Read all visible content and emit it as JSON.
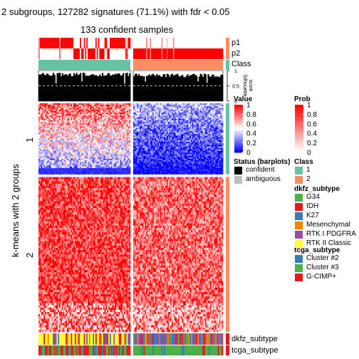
{
  "title": "2 subgroups, 127282 signatures (71.1%) with fdr < 0.05",
  "subtitle": "133 confident samples",
  "y_axis_label": "k-means with 2 groups",
  "row_groups": [
    "1",
    "2"
  ],
  "tracks": {
    "p1": "p1",
    "p2": "p2",
    "class": "Class",
    "silhouette": "Silhouette\nscore",
    "dkfz": "dkfz_subtype",
    "tcga": "tcga_subtype"
  },
  "silhouette_ticks": [
    "0",
    "0.5",
    "1"
  ],
  "legends": {
    "value": {
      "title": "Value",
      "ticks": [
        "1",
        "0.8",
        "0.6",
        "0.4",
        "0.2",
        "0"
      ],
      "colors": [
        "#ff0000",
        "#ffffff",
        "#0000ff"
      ]
    },
    "prob": {
      "title": "Prob",
      "ticks": [
        "1",
        "0.8",
        "0.6",
        "0.4",
        "0.2",
        "0"
      ],
      "colors": [
        "#ff0000",
        "#ffffff"
      ]
    },
    "status": {
      "title": "Status (barplots)",
      "items": [
        {
          "label": "confident",
          "color": "#000000"
        },
        {
          "label": "ambiguous",
          "color": "#bebebe"
        }
      ]
    },
    "class": {
      "title": "Class",
      "items": [
        {
          "label": "1",
          "color": "#66c2a5"
        },
        {
          "label": "2",
          "color": "#fc8d62"
        }
      ]
    },
    "dkfz": {
      "title": "dkfz_subtype",
      "items": [
        {
          "label": "G34",
          "color": "#4daf4a"
        },
        {
          "label": "IDH",
          "color": "#e41a1c"
        },
        {
          "label": "K27",
          "color": "#377eb8"
        },
        {
          "label": "Mesenchymal",
          "color": "#ff7f00"
        },
        {
          "label": "RTK I PDGFRA",
          "color": "#984ea3"
        },
        {
          "label": "RTK II Classic",
          "color": "#ffff33"
        }
      ]
    },
    "tcga": {
      "title": "tcga_subtype",
      "items": [
        {
          "label": "Cluster #2",
          "color": "#377eb8"
        },
        {
          "label": "Cluster #3",
          "color": "#4daf4a"
        },
        {
          "label": "G-CIMP+",
          "color": "#e41a1c"
        }
      ]
    }
  },
  "chart_data": {
    "type": "heatmap",
    "title": "2 subgroups, 127282 signatures (71.1%) with fdr < 0.05",
    "subtitle": "133 confident samples",
    "ylabel": "k-means with 2 groups",
    "value_range": [
      0,
      1
    ],
    "n_columns_group1": 71,
    "n_columns_group2": 70,
    "samples_confident": 133,
    "signatures": 127282,
    "row_groups": [
      {
        "name": "1",
        "approx_fraction": 0.31
      },
      {
        "name": "2",
        "approx_fraction": 0.69
      }
    ],
    "pattern": {
      "group1_rows": {
        "class1_columns": "mixed, mostly high",
        "class2_columns": "mostly low"
      },
      "group2_rows": {
        "class1_columns": "high",
        "class2_columns": "high to mixed"
      }
    },
    "class_membership": {
      "1": "left block",
      "2": "right block"
    },
    "p1_mean": {
      "1": 0.97,
      "2": 0.05
    },
    "p2_mean": {
      "1": 0.03,
      "2": 0.95
    },
    "silhouette_mean": {
      "1": 0.93,
      "2": 0.9
    },
    "silhouette_ylim": [
      0,
      1
    ]
  }
}
